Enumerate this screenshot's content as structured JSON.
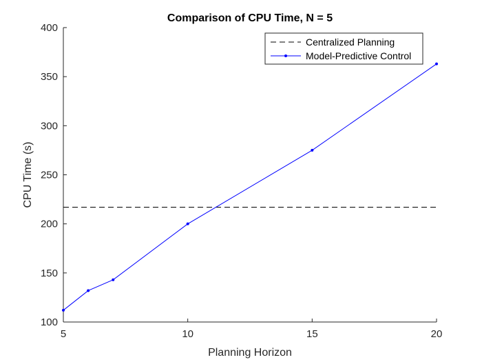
{
  "chart_data": {
    "type": "line",
    "title": "Comparison of CPU Time, N = 5",
    "xlabel": "Planning Horizon",
    "ylabel": "CPU Time (s)",
    "xlim": [
      5,
      20
    ],
    "ylim": [
      100,
      400
    ],
    "xticks": [
      5,
      10,
      15,
      20
    ],
    "yticks": [
      100,
      150,
      200,
      250,
      300,
      350,
      400
    ],
    "grid": false,
    "legend_position": "top-right",
    "series": [
      {
        "name": "Centralized Planning",
        "style": "dashed",
        "color": "#000000",
        "x": [
          5,
          20
        ],
        "y": [
          217,
          217
        ]
      },
      {
        "name": "Model-Predictive Control",
        "style": "solid-with-markers",
        "color": "#0000ff",
        "x": [
          5,
          6,
          7,
          10,
          15,
          20
        ],
        "y": [
          112,
          132,
          143,
          200,
          275,
          363
        ]
      }
    ]
  }
}
